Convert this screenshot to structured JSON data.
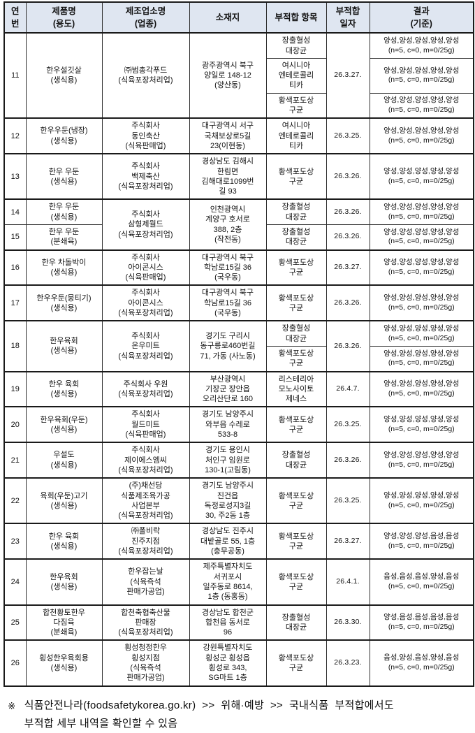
{
  "colors": {
    "header_bg": "#dfe6f1",
    "border": "#1a1a1a",
    "text": "#111111"
  },
  "table": {
    "columns": [
      {
        "id": "no",
        "label": "연\n번"
      },
      {
        "id": "product",
        "label": "제품명\n(용도)"
      },
      {
        "id": "maker",
        "label": "제조업소명\n(업종)"
      },
      {
        "id": "address",
        "label": "소재지"
      },
      {
        "id": "item",
        "label": "부적합 항목"
      },
      {
        "id": "date",
        "label": "부적합\n일자"
      },
      {
        "id": "result",
        "label": "결과\n(기준)"
      }
    ],
    "rows": [
      {
        "no": "11",
        "product": "한우설깃살\n(생식용)",
        "maker": "㈜범총각푸드\n(식육포장처리업)",
        "address": "광주광역시 북구\n양일로 148-12\n(양산동)",
        "date": "26.3.27.",
        "findings": [
          {
            "item": "장출혈성\n대장균",
            "result": "양성,양성,양성,양성,양성\n(n=5, c=0, m=0/25g)"
          },
          {
            "item": "여시니아\n엔테로콜리\n티카",
            "result": "양성,양성,양성,양성,양성\n(n=5, c=0, m=0/25g)"
          },
          {
            "item": "황색포도상\n구균",
            "result": "양성,양성,양성,양성,양성\n(n=5, c=0, m=0/25g)"
          }
        ]
      },
      {
        "no": "12",
        "product": "한우우둔(냉장)\n(생식용)",
        "maker": "주식회사\n동인축산\n(식육판매업)",
        "address": "대구광역시 서구\n국채보상로5길\n23(이현동)",
        "date": "26.3.25.",
        "findings": [
          {
            "item": "여시니아\n엔테로콜리\n티카",
            "result": "양성,양성,양성,양성,양성\n(n=5, c=0, m=0/25g)"
          }
        ]
      },
      {
        "no": "13",
        "product": "한우 우둔\n(생식용)",
        "maker": "주식회사\n백제축산\n(식육포장처리업)",
        "address": "경상남도 김해시\n한림면\n김해대로1099번\n길 93",
        "date": "26.3.26.",
        "findings": [
          {
            "item": "황색포도상\n구균",
            "result": "양성,양성,양성,양성,양성\n(n=5, c=0, m=0/25g)"
          }
        ]
      },
      {
        "no": "14",
        "product": "한우 우둔\n(생식용)",
        "maker": "주식회사\n삼형제월드\n(식육포장처리업)",
        "address": "인천광역시\n계양구 호서로\n388, 2층\n(작전동)",
        "date": "26.3.26.",
        "merge_down": true,
        "findings": [
          {
            "item": "장출혈성\n대장균",
            "result": "양성,양성,양성,양성,양성\n(n=5, c=0, m=0/25g)"
          }
        ]
      },
      {
        "no": "15",
        "product": "한우 우둔\n(분쇄육)",
        "maker": "",
        "address": "",
        "date": "26.3.26.",
        "merged_up": true,
        "findings": [
          {
            "item": "장출혈성\n대장균",
            "result": "양성,양성,양성,양성,양성\n(n=5, c=0, m=0/25g)"
          }
        ]
      },
      {
        "no": "16",
        "product": "한우 차돌박이\n(생식용)",
        "maker": "주식회사\n아이콘시스\n(식육판매업)",
        "address": "대구광역시 북구\n학남로15길 36\n(국우동)",
        "date": "26.3.27.",
        "findings": [
          {
            "item": "황색포도상\n구균",
            "result": "양성,양성,양성,양성,양성\n(n=5, c=0, m=0/25g)"
          }
        ]
      },
      {
        "no": "17",
        "product": "한우우둔(뭉티기)\n(생식용)",
        "maker": "주식회사\n아이콘시스\n(식육포장처리업)",
        "address": "대구광역시 북구\n학남로15길 36\n(국우동)",
        "date": "26.3.26.",
        "findings": [
          {
            "item": "황색포도상\n구균",
            "result": "양성,양성,양성,양성,양성\n(n=5, c=0, m=0/25g)"
          }
        ]
      },
      {
        "no": "18",
        "product": "한우육회\n(생식용)",
        "maker": "주식회사\n온우미트\n(식육포장처리업)",
        "address": "경기도 구리시\n동구릉로460번길\n71, 가동 (사노동)",
        "date": "26.3.26.",
        "findings": [
          {
            "item": "장출혈성\n대장균",
            "result": "양성,양성,양성,양성,양성\n(n=5, c=0, m=0/25g)"
          },
          {
            "item": "황색포도상\n구균",
            "result": "양성,양성,양성,양성,양성\n(n=5, c=0, m=0/25g)"
          }
        ]
      },
      {
        "no": "19",
        "product": "한우 육회\n(생식용)",
        "maker": "주식회사 우원\n(식육포장처리업)",
        "address": "부산광역시\n기장군 장안읍\n오리산단로 160",
        "date": "26.4.7.",
        "findings": [
          {
            "item": "리스테리아\n모노사이토\n제네스",
            "result": "양성,양성,양성,양성,양성\n(n=5, c=0, m=0/25g)"
          }
        ]
      },
      {
        "no": "20",
        "product": "한우육회(우둔)\n(생식용)",
        "maker": "주식회사\n월드미트\n(식육판매업)",
        "address": "경기도 남양주시\n와부읍 수레로\n533-8",
        "date": "26.3.25.",
        "findings": [
          {
            "item": "황색포도상\n구균",
            "result": "양성,양성,양성,양성,양성\n(n=5, c=0, m=0/25g)"
          }
        ]
      },
      {
        "no": "21",
        "product": "우설도\n(생식용)",
        "maker": "주식회사\n제이에스엠씨\n(식육포장처리업)",
        "address": "경기도 용인시\n처인구 임원로\n130-1(고림동)",
        "date": "26.3.26.",
        "findings": [
          {
            "item": "장출혈성\n대장균",
            "result": "양성,양성,양성,양성,양성\n(n=5, c=0, m=0/25g)"
          }
        ]
      },
      {
        "no": "22",
        "product": "육회(우둔)고기\n(생식용)",
        "maker": "(주)채선당\n식품제조육가공\n사업본부\n(식육포장처리업)",
        "address": "경기도 남양주시\n진건읍\n독정로성지3길\n30, 주2동 1층",
        "date": "26.3.25.",
        "findings": [
          {
            "item": "황색포도상\n구균",
            "result": "양성,양성,양성,양성,양성\n(n=5, c=0, m=0/25g)"
          }
        ]
      },
      {
        "no": "23",
        "product": "한우 육회\n(생식용)",
        "maker": "㈜폴비락\n진주지점\n(식육포장처리업)",
        "address": "경상남도 진주시\n대밭골로 55, 1층\n(충무공동)",
        "date": "26.3.27.",
        "findings": [
          {
            "item": "황색포도상\n구균",
            "result": "양성,양성,양성,음성,음성\n(n=5, c=0, m=0/25g)"
          }
        ]
      },
      {
        "no": "24",
        "product": "한우육회\n(생식용)",
        "maker": "한우잡는날\n(식육즉석\n판매가공업)",
        "address": "제주특별자치도\n서귀포시\n일주동로 8614,\n1층 (동홍동)",
        "date": "26.4.1.",
        "findings": [
          {
            "item": "황색포도상\n구균",
            "result": "음성,음성,음성,양성,음성\n(n=5, c=0, m=0/25g)"
          }
        ]
      },
      {
        "no": "25",
        "product": "합천황토한우\n다짐육\n(분쇄육)",
        "maker": "합천축협축산물\n판매장\n(식육포장처리업)",
        "address": "경상남도 합천군\n합천읍 동서로\n96",
        "date": "26.3.30.",
        "findings": [
          {
            "item": "장출혈성\n대장균",
            "result": "양성,음성,음성,음성,음성\n(n=5, c=0, m=0/25g)"
          }
        ]
      },
      {
        "no": "26",
        "product": "횡성한우육회용\n(생식용)",
        "maker": "횡성청정한우\n횡성지점\n(식육즉석\n판매가공업)",
        "address": "강원특별자치도\n횡성군 횡성읍\n횡성로 343,\nSG마트 1층",
        "date": "26.3.23.",
        "findings": [
          {
            "item": "황색포도상\n구균",
            "result": "음성,양성,음성,양성,음성\n(n=5, c=0, m=0/25g)"
          }
        ]
      }
    ]
  },
  "footnote": {
    "marker": "※",
    "text": "식품안전나라(foodsafetykorea.go.kr)  >>  위해·예방  >>  국내식품  부적합에서도\n부적합 세부 내역을 확인할 수 있음"
  }
}
